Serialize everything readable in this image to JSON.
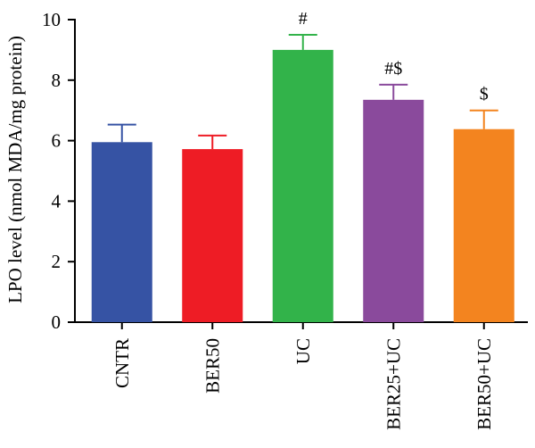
{
  "chart_data": {
    "type": "bar",
    "categories": [
      "CNTR",
      "BER50",
      "UC",
      "BER25+UC",
      "BER50+UC"
    ],
    "values": [
      5.95,
      5.72,
      9.0,
      7.35,
      6.38
    ],
    "errors": [
      0.58,
      0.45,
      0.5,
      0.5,
      0.62
    ],
    "colors": [
      "#3653a4",
      "#ee1c25",
      "#32b34a",
      "#8a4a9c",
      "#f3841f"
    ],
    "annotations": [
      "",
      "",
      "#",
      "#$",
      "$"
    ],
    "ylabel": "LPO level (nmol MDA/mg protein)",
    "xlabel": "",
    "title": "",
    "ylim": [
      0,
      10
    ],
    "yticks": [
      0,
      2,
      4,
      6,
      8,
      10
    ],
    "grid": false
  }
}
